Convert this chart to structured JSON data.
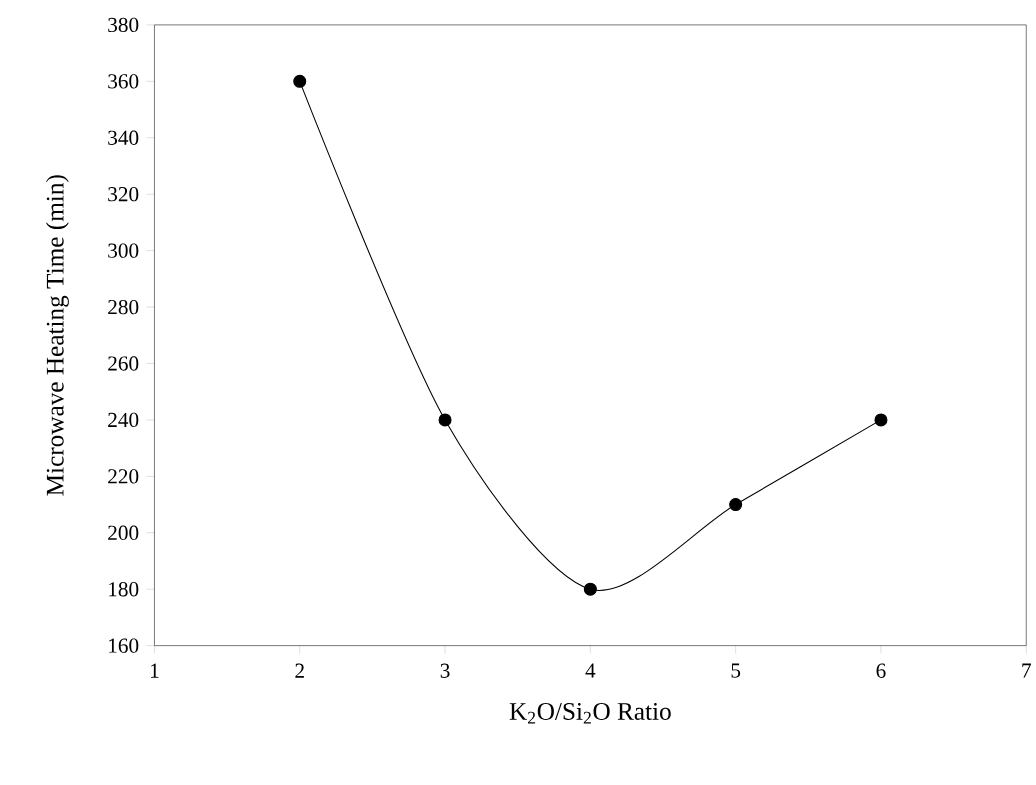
{
  "chart_data": {
    "type": "line",
    "xlabel": "K$_{2}$O/Si$_{2}$O Ratio",
    "ylabel": "Microwave Heating Time (min)",
    "x": [
      2,
      3,
      4,
      5,
      6
    ],
    "series": [
      {
        "color": "#000000",
        "values": [
          360,
          240,
          180,
          210,
          240
        ]
      }
    ],
    "xlim": [
      1,
      7
    ],
    "ylim": [
      160,
      380
    ],
    "xticks": [
      1,
      2,
      3,
      4,
      5,
      6,
      7
    ],
    "yticks": [
      160,
      180,
      200,
      220,
      240,
      260,
      280,
      300,
      320,
      340,
      360,
      380
    ],
    "marker": "circle",
    "line_style": "solid",
    "grid": false
  }
}
